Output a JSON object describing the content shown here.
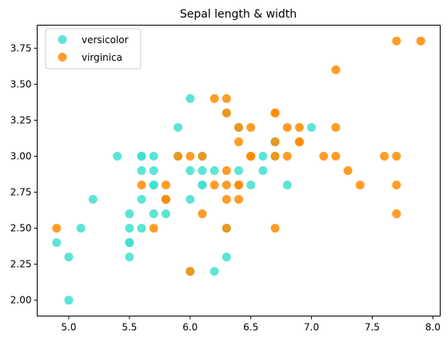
{
  "chart_data": {
    "type": "scatter",
    "title": "Sepal length & width",
    "xlabel": "",
    "ylabel": "",
    "xlim": [
      4.74,
      8.06
    ],
    "ylim": [
      1.89,
      3.91
    ],
    "x_ticks": [
      "5.0",
      "5.5",
      "6.0",
      "6.5",
      "7.0",
      "7.5",
      "8.0"
    ],
    "x_tick_values": [
      5.0,
      5.5,
      6.0,
      6.5,
      7.0,
      7.5,
      8.0
    ],
    "y_ticks": [
      "2.00",
      "2.25",
      "2.50",
      "2.75",
      "3.00",
      "3.25",
      "3.50",
      "3.75"
    ],
    "y_tick_values": [
      2.0,
      2.25,
      2.5,
      2.75,
      3.0,
      3.25,
      3.5,
      3.75
    ],
    "grid": false,
    "legend_position": "top-left",
    "series": [
      {
        "name": "versicolor",
        "color": "#40e0d0",
        "points": [
          [
            7.0,
            3.2
          ],
          [
            6.4,
            3.2
          ],
          [
            6.9,
            3.1
          ],
          [
            5.5,
            2.3
          ],
          [
            6.5,
            2.8
          ],
          [
            5.7,
            2.8
          ],
          [
            6.3,
            3.3
          ],
          [
            4.9,
            2.4
          ],
          [
            6.6,
            2.9
          ],
          [
            5.2,
            2.7
          ],
          [
            5.0,
            2.0
          ],
          [
            5.9,
            3.0
          ],
          [
            6.0,
            2.2
          ],
          [
            6.1,
            2.9
          ],
          [
            5.6,
            2.9
          ],
          [
            6.7,
            3.1
          ],
          [
            5.6,
            3.0
          ],
          [
            5.8,
            2.7
          ],
          [
            6.2,
            2.2
          ],
          [
            5.6,
            2.5
          ],
          [
            5.9,
            3.2
          ],
          [
            6.1,
            2.8
          ],
          [
            6.3,
            2.5
          ],
          [
            6.1,
            2.8
          ],
          [
            6.4,
            2.9
          ],
          [
            6.6,
            3.0
          ],
          [
            6.8,
            2.8
          ],
          [
            6.7,
            3.0
          ],
          [
            6.0,
            2.9
          ],
          [
            5.7,
            2.6
          ],
          [
            5.5,
            2.4
          ],
          [
            5.5,
            2.4
          ],
          [
            5.8,
            2.7
          ],
          [
            6.0,
            2.7
          ],
          [
            5.4,
            3.0
          ],
          [
            6.0,
            3.4
          ],
          [
            6.7,
            3.1
          ],
          [
            6.3,
            2.3
          ],
          [
            5.6,
            3.0
          ],
          [
            5.5,
            2.5
          ],
          [
            5.5,
            2.6
          ],
          [
            6.1,
            3.0
          ],
          [
            5.8,
            2.6
          ],
          [
            5.0,
            2.3
          ],
          [
            5.6,
            2.7
          ],
          [
            5.7,
            3.0
          ],
          [
            5.7,
            2.9
          ],
          [
            6.2,
            2.9
          ],
          [
            5.1,
            2.5
          ],
          [
            5.7,
            2.8
          ]
        ]
      },
      {
        "name": "virginica",
        "color": "#ff8c00",
        "points": [
          [
            6.3,
            3.3
          ],
          [
            5.8,
            2.7
          ],
          [
            7.1,
            3.0
          ],
          [
            6.3,
            2.9
          ],
          [
            6.5,
            3.0
          ],
          [
            7.6,
            3.0
          ],
          [
            4.9,
            2.5
          ],
          [
            7.3,
            2.9
          ],
          [
            6.7,
            2.5
          ],
          [
            7.2,
            3.6
          ],
          [
            6.5,
            3.2
          ],
          [
            6.4,
            2.7
          ],
          [
            6.8,
            3.0
          ],
          [
            5.7,
            2.5
          ],
          [
            5.8,
            2.8
          ],
          [
            6.4,
            3.2
          ],
          [
            6.5,
            3.0
          ],
          [
            7.7,
            3.8
          ],
          [
            7.7,
            2.6
          ],
          [
            6.0,
            2.2
          ],
          [
            6.9,
            3.2
          ],
          [
            5.6,
            2.8
          ],
          [
            7.7,
            2.8
          ],
          [
            6.3,
            2.7
          ],
          [
            6.7,
            3.3
          ],
          [
            7.2,
            3.2
          ],
          [
            6.2,
            2.8
          ],
          [
            6.1,
            3.0
          ],
          [
            6.4,
            2.8
          ],
          [
            7.2,
            3.0
          ],
          [
            7.4,
            2.8
          ],
          [
            7.9,
            3.8
          ],
          [
            6.4,
            2.8
          ],
          [
            6.3,
            2.8
          ],
          [
            6.1,
            2.6
          ],
          [
            7.7,
            3.0
          ],
          [
            6.3,
            3.4
          ],
          [
            6.4,
            3.1
          ],
          [
            6.0,
            3.0
          ],
          [
            6.9,
            3.1
          ],
          [
            6.7,
            3.1
          ],
          [
            6.9,
            3.1
          ],
          [
            5.8,
            2.7
          ],
          [
            6.8,
            3.2
          ],
          [
            6.7,
            3.3
          ],
          [
            6.7,
            3.0
          ],
          [
            6.3,
            2.5
          ],
          [
            6.5,
            3.0
          ],
          [
            6.2,
            3.4
          ],
          [
            5.9,
            3.0
          ]
        ]
      }
    ]
  }
}
